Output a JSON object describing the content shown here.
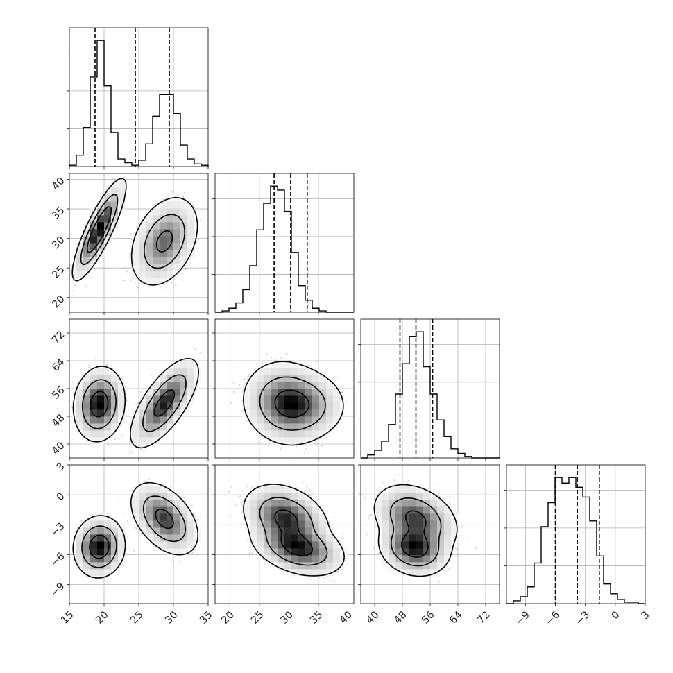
{
  "chart_data": {
    "type": "corner",
    "grid": true,
    "axes": [
      {
        "range": [
          15,
          35
        ],
        "ticks": [
          15,
          20,
          25,
          30,
          35
        ],
        "tick_labels": [
          "15",
          "20",
          "25",
          "30",
          "35"
        ],
        "quantiles": [
          18.7,
          24.5,
          29.4
        ]
      },
      {
        "range": [
          17.5,
          41
        ],
        "ticks": [
          20,
          25,
          30,
          35,
          40
        ],
        "tick_labels": [
          "20",
          "25",
          "30",
          "35",
          "40"
        ],
        "quantiles": [
          27.5,
          30.3,
          33.1
        ]
      },
      {
        "range": [
          36,
          76
        ],
        "ticks": [
          40,
          48,
          56,
          64,
          72
        ],
        "tick_labels": [
          "40",
          "48",
          "56",
          "64",
          "72"
        ],
        "quantiles": [
          47.3,
          51.9,
          56.7
        ]
      },
      {
        "range": [
          -10.9,
          3
        ],
        "ticks": [
          -9,
          -6,
          -3,
          0,
          3
        ],
        "tick_labels": [
          "−9",
          "−6",
          "−3",
          "0",
          "3"
        ],
        "quantiles": [
          -6.0,
          -3.8,
          -1.6
        ]
      }
    ],
    "histograms": [
      {
        "counts": [
          1,
          9,
          31,
          71,
          100,
          64,
          27,
          6,
          3,
          1,
          5,
          18,
          40,
          57,
          57,
          42,
          17,
          6,
          2,
          1
        ]
      },
      {
        "counts": [
          0,
          1,
          3,
          7,
          17,
          35,
          62,
          82,
          95,
          92,
          76,
          45,
          20,
          9,
          3,
          1,
          0,
          0,
          0,
          0
        ]
      },
      {
        "counts": [
          0,
          2,
          5,
          11,
          22,
          42,
          62,
          80,
          83,
          60,
          42,
          25,
          14,
          6,
          3,
          1,
          0,
          0,
          0,
          0
        ]
      },
      {
        "counts": [
          0,
          2,
          5,
          12,
          29,
          55,
          72,
          90,
          86,
          90,
          83,
          76,
          59,
          34,
          14,
          7,
          3,
          1,
          1,
          0
        ]
      }
    ],
    "clusters": [
      {
        "means": [
          19.3,
          31.5,
          51.5,
          -5.2
        ],
        "sds": [
          1.2,
          2.7,
          3.5,
          1.0
        ],
        "corr": [
          [
            1,
            0.85,
            0.1,
            0.05
          ],
          [
            0.85,
            1,
            -0.05,
            -0.35
          ],
          [
            0.1,
            -0.05,
            1,
            -0.15
          ],
          [
            0.05,
            -0.35,
            -0.15,
            1
          ]
        ],
        "weight": 0.5
      },
      {
        "means": [
          28.7,
          29.5,
          51.8,
          -2.4
        ],
        "sds": [
          1.6,
          2.5,
          4.2,
          1.2
        ],
        "corr": [
          [
            1,
            0.35,
            0.7,
            -0.45
          ],
          [
            0.35,
            1,
            -0.1,
            -0.3
          ],
          [
            0.7,
            -0.1,
            1,
            -0.3
          ],
          [
            -0.45,
            -0.3,
            -0.3,
            1
          ]
        ],
        "weight": 0.5
      }
    ]
  }
}
